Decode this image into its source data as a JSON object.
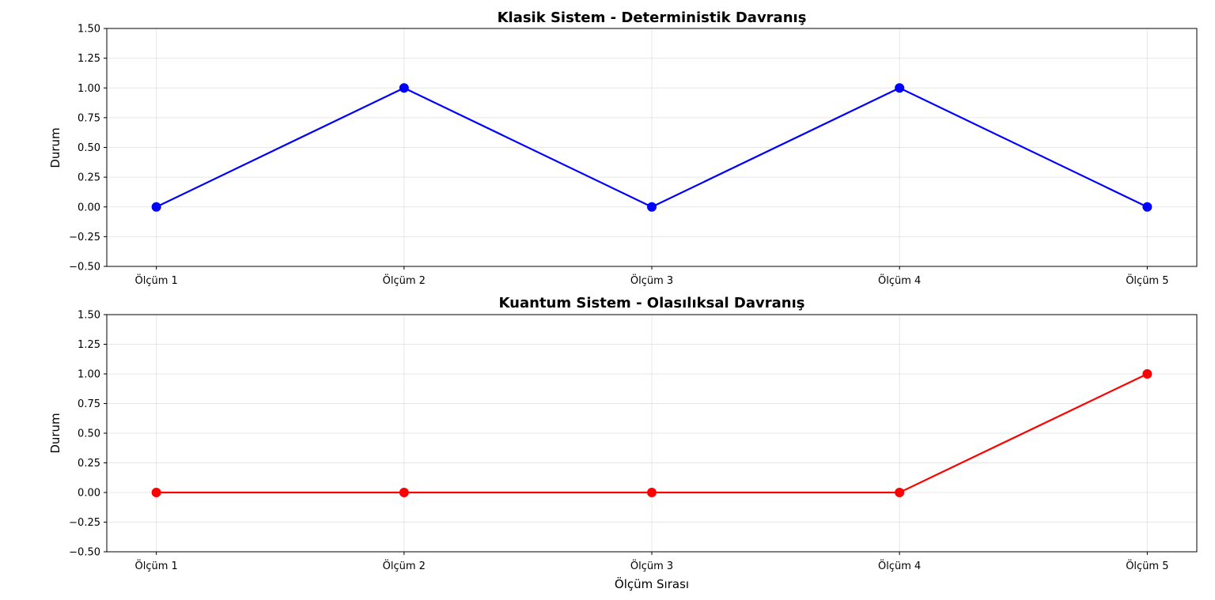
{
  "chart_data": [
    {
      "type": "line",
      "title": "Klasik Sistem - Deterministik Davranış",
      "xlabel": "",
      "ylabel": "Durum",
      "categories": [
        "Ölçüm 1",
        "Ölçüm 2",
        "Ölçüm 3",
        "Ölçüm 4",
        "Ölçüm 5"
      ],
      "ylim": [
        -0.5,
        1.5
      ],
      "yticks": [
        "−0.50",
        "−0.25",
        "0.00",
        "0.25",
        "0.50",
        "0.75",
        "1.00",
        "1.25",
        "1.50"
      ],
      "grid": true,
      "series": [
        {
          "color": "#0000ff",
          "values": [
            0,
            1,
            0,
            1,
            0
          ]
        }
      ]
    },
    {
      "type": "line",
      "title": "Kuantum Sistem - Olasılıksal Davranış",
      "xlabel": "Ölçüm Sırası",
      "ylabel": "Durum",
      "categories": [
        "Ölçüm 1",
        "Ölçüm 2",
        "Ölçüm 3",
        "Ölçüm 4",
        "Ölçüm 5"
      ],
      "ylim": [
        -0.5,
        1.5
      ],
      "yticks": [
        "−0.50",
        "−0.25",
        "0.00",
        "0.25",
        "0.50",
        "0.75",
        "1.00",
        "1.25",
        "1.50"
      ],
      "grid": true,
      "series": [
        {
          "color": "#ff0000",
          "values": [
            0,
            0,
            0,
            0,
            1
          ]
        }
      ]
    }
  ]
}
